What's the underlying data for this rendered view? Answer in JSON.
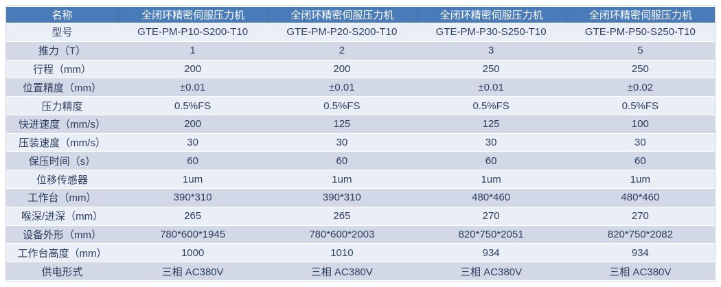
{
  "colors": {
    "header_bg": "#4a7bb9",
    "header_text": "#ffffff",
    "band_light": "#eaeef6",
    "band_dark": "#d3d8e6",
    "text": "#2d3e5f",
    "border": "#ccd1da"
  },
  "table": {
    "header": {
      "label": "名称",
      "columns": [
        "全闭环精密伺服压力机",
        "全闭环精密伺服压力机",
        "全闭环精密伺服压力机",
        "全闭环精密伺服压力机"
      ]
    },
    "rows": [
      {
        "label": "型号",
        "values": [
          "GTE-PM-P10-S200-T10",
          "GTE-PM-P20-S200-T10",
          "GTE-PM-P30-S250-T10",
          "GTE-PM-P50-S250-T10"
        ]
      },
      {
        "label": "推力（T）",
        "values": [
          "1",
          "2",
          "3",
          "5"
        ]
      },
      {
        "label": "行程（mm）",
        "values": [
          "200",
          "200",
          "250",
          "250"
        ]
      },
      {
        "label": "位置精度（mm）",
        "values": [
          "±0.01",
          "±0.01",
          "±0.01",
          "±0.02"
        ]
      },
      {
        "label": "压力精度",
        "values": [
          "0.5%FS",
          "0.5%FS",
          "0.5%FS",
          "0.5%FS"
        ]
      },
      {
        "label": "快进速度（mm/s）",
        "values": [
          "200",
          "125",
          "125",
          "100"
        ]
      },
      {
        "label": "压装速度（mm/s）",
        "values": [
          "30",
          "30",
          "30",
          "30"
        ]
      },
      {
        "label": "保压时间（s）",
        "values": [
          "60",
          "60",
          "60",
          "60"
        ]
      },
      {
        "label": "位移传感器",
        "values": [
          "1um",
          "1um",
          "1um",
          "1um"
        ]
      },
      {
        "label": "工作台（mm）",
        "values": [
          "390*310",
          "390*310",
          "480*460",
          "480*460"
        ]
      },
      {
        "label": "喉深/进深（mm）",
        "values": [
          "265",
          "265",
          "270",
          "270"
        ]
      },
      {
        "label": "设备外形（mm）",
        "values": [
          "780*600*1945",
          "780*600*2003",
          "820*750*2051",
          "820*750*2082"
        ]
      },
      {
        "label": "工作台高度（mm）",
        "values": [
          "1000",
          "1010",
          "934",
          "934"
        ]
      },
      {
        "label": "供电形式",
        "values": [
          "三相 AC380V",
          "三相 AC380V",
          "三相 AC380V",
          "三相 AC380V"
        ]
      }
    ]
  }
}
